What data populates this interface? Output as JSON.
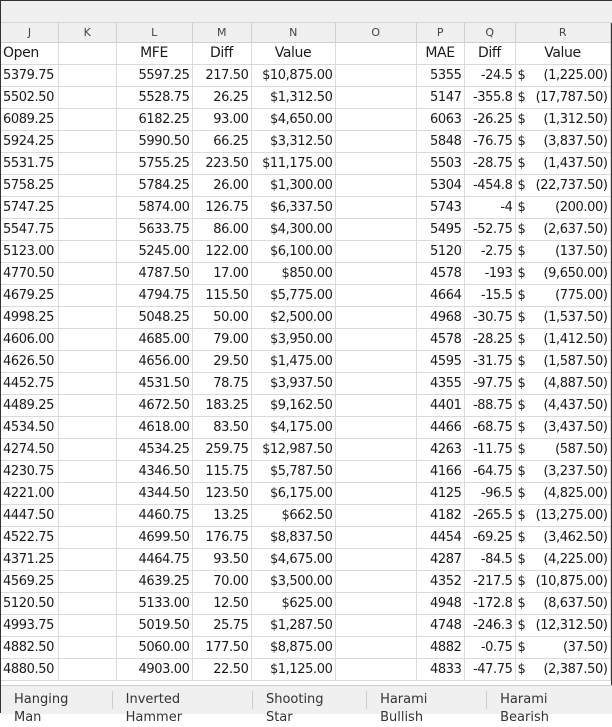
{
  "column_letters": [
    "J",
    "K",
    "L",
    "M",
    "N",
    "O",
    "P",
    "Q",
    "R"
  ],
  "headers": {
    "open": "Open",
    "mfe": "MFE",
    "diff1": "Diff",
    "value1": "Value",
    "mae": "MAE",
    "diff2": "Diff",
    "value2": "Value"
  },
  "rows": [
    [
      "5379.75",
      "5597.25",
      "217.50",
      "$10,875.00",
      "5355",
      "-24.5",
      "(1,225.00)"
    ],
    [
      "5502.50",
      "5528.75",
      "26.25",
      "$1,312.50",
      "5147",
      "-355.8",
      "(17,787.50)"
    ],
    [
      "6089.25",
      "6182.25",
      "93.00",
      "$4,650.00",
      "6063",
      "-26.25",
      "(1,312.50)"
    ],
    [
      "5924.25",
      "5990.50",
      "66.25",
      "$3,312.50",
      "5848",
      "-76.75",
      "(3,837.50)"
    ],
    [
      "5531.75",
      "5755.25",
      "223.50",
      "$11,175.00",
      "5503",
      "-28.75",
      "(1,437.50)"
    ],
    [
      "5758.25",
      "5784.25",
      "26.00",
      "$1,300.00",
      "5304",
      "-454.8",
      "(22,737.50)"
    ],
    [
      "5747.25",
      "5874.00",
      "126.75",
      "$6,337.50",
      "5743",
      "-4",
      "(200.00)"
    ],
    [
      "5547.75",
      "5633.75",
      "86.00",
      "$4,300.00",
      "5495",
      "-52.75",
      "(2,637.50)"
    ],
    [
      "5123.00",
      "5245.00",
      "122.00",
      "$6,100.00",
      "5120",
      "-2.75",
      "(137.50)"
    ],
    [
      "4770.50",
      "4787.50",
      "17.00",
      "$850.00",
      "4578",
      "-193",
      "(9,650.00)"
    ],
    [
      "4679.25",
      "4794.75",
      "115.50",
      "$5,775.00",
      "4664",
      "-15.5",
      "(775.00)"
    ],
    [
      "4998.25",
      "5048.25",
      "50.00",
      "$2,500.00",
      "4968",
      "-30.75",
      "(1,537.50)"
    ],
    [
      "4606.00",
      "4685.00",
      "79.00",
      "$3,950.00",
      "4578",
      "-28.25",
      "(1,412.50)"
    ],
    [
      "4626.50",
      "4656.00",
      "29.50",
      "$1,475.00",
      "4595",
      "-31.75",
      "(1,587.50)"
    ],
    [
      "4452.75",
      "4531.50",
      "78.75",
      "$3,937.50",
      "4355",
      "-97.75",
      "(4,887.50)"
    ],
    [
      "4489.25",
      "4672.50",
      "183.25",
      "$9,162.50",
      "4401",
      "-88.75",
      "(4,437.50)"
    ],
    [
      "4534.50",
      "4618.00",
      "83.50",
      "$4,175.00",
      "4466",
      "-68.75",
      "(3,437.50)"
    ],
    [
      "4274.50",
      "4534.25",
      "259.75",
      "$12,987.50",
      "4263",
      "-11.75",
      "(587.50)"
    ],
    [
      "4230.75",
      "4346.50",
      "115.75",
      "$5,787.50",
      "4166",
      "-64.75",
      "(3,237.50)"
    ],
    [
      "4221.00",
      "4344.50",
      "123.50",
      "$6,175.00",
      "4125",
      "-96.5",
      "(4,825.00)"
    ],
    [
      "4447.50",
      "4460.75",
      "13.25",
      "$662.50",
      "4182",
      "-265.5",
      "(13,275.00)"
    ],
    [
      "4522.75",
      "4699.50",
      "176.75",
      "$8,837.50",
      "4454",
      "-69.25",
      "(3,462.50)"
    ],
    [
      "4371.25",
      "4464.75",
      "93.50",
      "$4,675.00",
      "4287",
      "-84.5",
      "(4,225.00)"
    ],
    [
      "4569.25",
      "4639.25",
      "70.00",
      "$3,500.00",
      "4352",
      "-217.5",
      "(10,875.00)"
    ],
    [
      "5120.50",
      "5133.00",
      "12.50",
      "$625.00",
      "4948",
      "-172.8",
      "(8,637.50)"
    ],
    [
      "4993.75",
      "5019.50",
      "25.75",
      "$1,287.50",
      "4748",
      "-246.3",
      "(12,312.50)"
    ],
    [
      "4882.50",
      "5060.00",
      "177.50",
      "$8,875.00",
      "4882",
      "-0.75",
      "(37.50)"
    ],
    [
      "4880.50",
      "4903.00",
      "22.50",
      "$1,125.00",
      "4833",
      "-47.75",
      "(2,387.50)"
    ]
  ],
  "currency_symbol": "$",
  "sheet_tabs": [
    "Hanging Man",
    "Inverted Hammer",
    "Shooting Star",
    "Harami Bullish",
    "Harami Bearish"
  ]
}
